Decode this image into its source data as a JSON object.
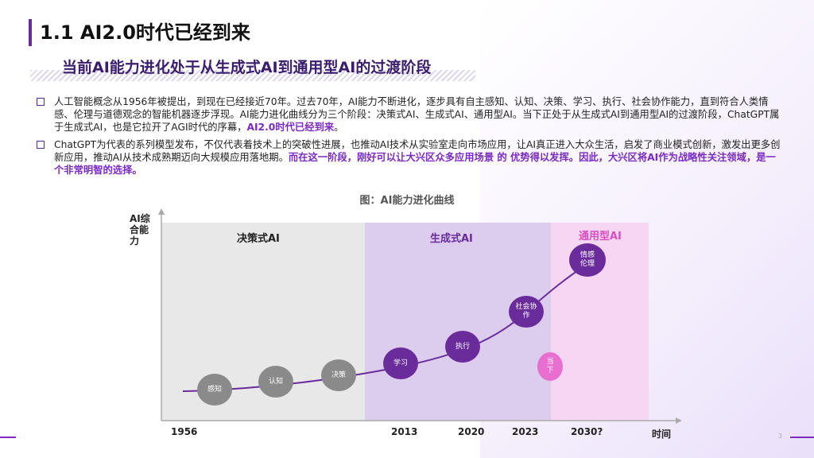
{
  "slide": {
    "title": "1.1 AI2.0时代已经到来",
    "subtitle": "当前AI能力进化处于从生成式AI到通用型AI的过渡阶段",
    "page_number": "3"
  },
  "bullets": [
    {
      "text": "人工智能概念从1956年被提出，到现在已经接近70年。过去70年，AI能力不断进化，逐步具有自主感知、认知、决策、学习、执行、社会协作能力，直到符合人类情感、伦理与道德观念的智能机器逐步浮现。AI能力进化曲线分为三个阶段：决策式AI、生成式AI、通用型AI。当下正处于从生成式AI到通用型AI的过渡阶段，ChatGPT属于生成式AI，也是它拉开了AGI时代的序幕，",
      "highlight": "AI2.0时代已经到来",
      "tail": "。"
    },
    {
      "text": "ChatGPT为代表的系列模型发布，不仅代表着技术上的突破性进展，也推动AI技术从实验室走向市场应用，让AI真正进入大众生活，启发了商业模式创新，激发出更多创新应用，推动AI从技术成熟期迈向大规模应用落地期。",
      "highlight": "而在这一阶段，刚好可以让大兴区众多应用场景 的 优势得以发挥",
      "highlight2": "。因此，大兴区将AI作为战略性关注领域，是一个非常明智的选择。"
    }
  ],
  "figure": {
    "caption": "图：AI能力进化曲线",
    "y_label": "AI综合能力",
    "x_label": "时间",
    "ticks": [
      "1956",
      "2013",
      "2020",
      "2023",
      "2030?"
    ],
    "regions": [
      {
        "name": "决策式AI",
        "color": "#e8e8e8",
        "label_color": "#666666"
      },
      {
        "name": "生成式AI",
        "color": "#dccdee",
        "label_color": "#6a2c9b"
      },
      {
        "name": "通用型AI",
        "color": "#f6d6f2",
        "label_color": "#d94fc0"
      }
    ],
    "nodes": [
      {
        "label": "感知",
        "stage": "decision"
      },
      {
        "label": "认知",
        "stage": "decision"
      },
      {
        "label": "决策",
        "stage": "decision"
      },
      {
        "label": "学习",
        "stage": "generative"
      },
      {
        "label": "执行",
        "stage": "generative"
      },
      {
        "label": "社会协作",
        "stage": "generative"
      },
      {
        "label": "当下",
        "stage": "now"
      },
      {
        "label": "情感伦理",
        "stage": "general"
      }
    ],
    "colors": {
      "accent": "#6a2c9b",
      "now": "#e86fd0",
      "curve": "#6a2c9b",
      "gray": "#8a8a8a"
    }
  }
}
